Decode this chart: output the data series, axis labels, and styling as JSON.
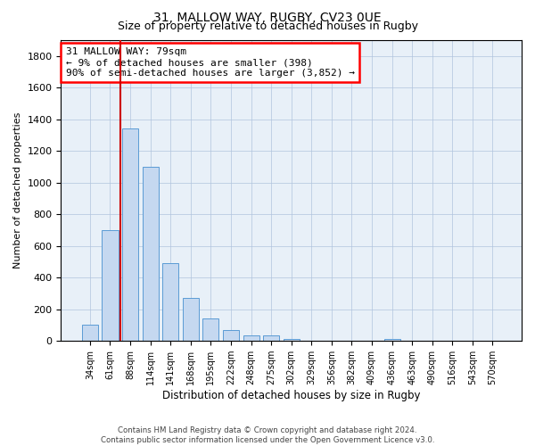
{
  "title1": "31, MALLOW WAY, RUGBY, CV23 0UE",
  "title2": "Size of property relative to detached houses in Rugby",
  "xlabel": "Distribution of detached houses by size in Rugby",
  "ylabel": "Number of detached properties",
  "bar_color": "#c5d8f0",
  "bar_edge_color": "#5b9bd5",
  "highlight_color": "#cc0000",
  "categories": [
    "34sqm",
    "61sqm",
    "88sqm",
    "114sqm",
    "141sqm",
    "168sqm",
    "195sqm",
    "222sqm",
    "248sqm",
    "275sqm",
    "302sqm",
    "329sqm",
    "356sqm",
    "382sqm",
    "409sqm",
    "436sqm",
    "463sqm",
    "490sqm",
    "516sqm",
    "543sqm",
    "570sqm"
  ],
  "values": [
    100,
    700,
    1340,
    1100,
    490,
    270,
    140,
    70,
    35,
    35,
    15,
    0,
    0,
    0,
    0,
    15,
    0,
    0,
    0,
    0,
    0
  ],
  "red_line_x": 1.5,
  "annotation_text": "31 MALLOW WAY: 79sqm\n← 9% of detached houses are smaller (398)\n90% of semi-detached houses are larger (3,852) →",
  "ylim": [
    0,
    1900
  ],
  "yticks": [
    0,
    200,
    400,
    600,
    800,
    1000,
    1200,
    1400,
    1600,
    1800
  ],
  "footer1": "Contains HM Land Registry data © Crown copyright and database right 2024.",
  "footer2": "Contains public sector information licensed under the Open Government Licence v3.0.",
  "bg_color": "#ffffff",
  "plot_bg_color": "#e8f0f8",
  "grid_color": "#b0c4de"
}
